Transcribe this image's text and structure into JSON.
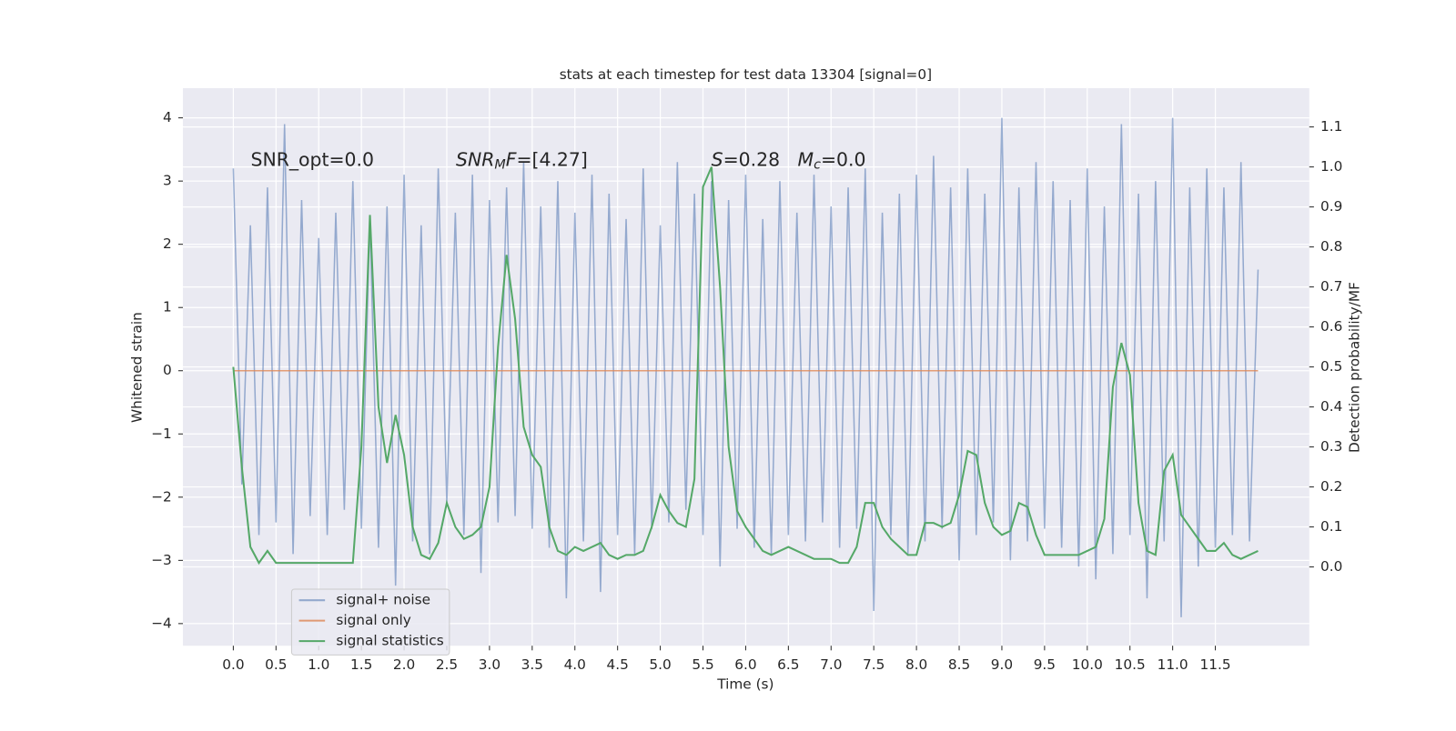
{
  "chart_data": {
    "type": "line",
    "title": "stats at each timestep for test data 13304 [signal=0]",
    "xlabel": "Time (s)",
    "ylabel": "Whitened strain",
    "y2label": "Detection probability/MF",
    "annotations": [
      [
        {
          "text": "SNR_opt=0.0"
        }
      ],
      [
        {
          "text": "SNR",
          "italic": true
        },
        {
          "text": "M",
          "italic": true,
          "sub": true
        },
        {
          "text": "F",
          "italic": true
        },
        {
          "text": "=[4.27]"
        }
      ],
      [
        {
          "text": "S",
          "italic": true
        },
        {
          "text": "=0.28   "
        },
        {
          "text": "M",
          "italic": true
        },
        {
          "text": "c",
          "italic": true,
          "sub": true
        },
        {
          "text": "=0.0"
        }
      ]
    ],
    "x": [
      0,
      0.1,
      0.2,
      0.3,
      0.4,
      0.5,
      0.6,
      0.7,
      0.8,
      0.9,
      1,
      1.1,
      1.2,
      1.3,
      1.4,
      1.5,
      1.6,
      1.7,
      1.8,
      1.9,
      2,
      2.1,
      2.2,
      2.3,
      2.4,
      2.5,
      2.6,
      2.7,
      2.8,
      2.9,
      3,
      3.1,
      3.2,
      3.3,
      3.4,
      3.5,
      3.6,
      3.7,
      3.8,
      3.9,
      4,
      4.1,
      4.2,
      4.3,
      4.4,
      4.5,
      4.6,
      4.7,
      4.8,
      4.9,
      5,
      5.1,
      5.2,
      5.3,
      5.4,
      5.5,
      5.6,
      5.7,
      5.8,
      5.9,
      6,
      6.1,
      6.2,
      6.3,
      6.4,
      6.5,
      6.6,
      6.7,
      6.8,
      6.9,
      7,
      7.1,
      7.2,
      7.3,
      7.4,
      7.5,
      7.6,
      7.7,
      7.8,
      7.9,
      8,
      8.1,
      8.2,
      8.3,
      8.4,
      8.5,
      8.6,
      8.7,
      8.8,
      8.9,
      9,
      9.1,
      9.2,
      9.3,
      9.4,
      9.5,
      9.6,
      9.7,
      9.8,
      9.9,
      10,
      10.1,
      10.2,
      10.3,
      10.4,
      10.5,
      10.6,
      10.7,
      10.8,
      10.9,
      11,
      11.1,
      11.2,
      11.3,
      11.4,
      11.5,
      11.6,
      11.7,
      11.8,
      11.9,
      12
    ],
    "series": [
      {
        "name": "signal+ noise",
        "color": "#4c72b0",
        "values": [
          3.2,
          -1.8,
          2.3,
          -2.6,
          2.9,
          -2.4,
          3.9,
          -2.9,
          2.7,
          -2.3,
          2.1,
          -2.6,
          2.5,
          -2.2,
          3.0,
          -2.5,
          2.4,
          -2.8,
          2.6,
          -3.4,
          3.1,
          -2.7,
          2.3,
          -2.9,
          3.2,
          -2.1,
          2.5,
          -2.6,
          3.1,
          -3.2,
          2.7,
          -2.4,
          2.9,
          -2.3,
          3.3,
          -2.5,
          2.6,
          -2.8,
          3.0,
          -3.6,
          2.5,
          -2.7,
          3.1,
          -3.5,
          2.8,
          -2.6,
          2.4,
          -2.9,
          3.2,
          -2.5,
          2.3,
          -2.4,
          3.3,
          -2.2,
          2.8,
          -2.6,
          3.0,
          -3.1,
          2.7,
          -2.5,
          3.1,
          -2.8,
          2.4,
          -2.9,
          3.0,
          -2.6,
          2.5,
          -2.7,
          3.1,
          -2.4,
          2.6,
          -2.8,
          2.9,
          -2.5,
          3.2,
          -3.8,
          2.5,
          -2.6,
          2.8,
          -2.9,
          3.1,
          -2.7,
          3.4,
          -2.5,
          2.9,
          -3.0,
          3.2,
          -2.6,
          2.8,
          -2.4,
          4.0,
          -3.0,
          2.9,
          -2.7,
          3.3,
          -2.5,
          3.0,
          -2.8,
          2.7,
          -3.1,
          3.2,
          -3.3,
          2.6,
          -2.9,
          3.9,
          -2.6,
          2.8,
          -3.6,
          3.0,
          -2.7,
          4.0,
          -3.9,
          2.9,
          -3.1,
          3.2,
          -2.8,
          2.9,
          -2.6,
          3.3,
          -2.7,
          1.6
        ]
      },
      {
        "name": "signal only",
        "color": "#dd8452",
        "values": [
          0,
          0,
          0,
          0,
          0,
          0,
          0,
          0,
          0,
          0,
          0,
          0,
          0,
          0,
          0,
          0,
          0,
          0,
          0,
          0,
          0,
          0,
          0,
          0,
          0,
          0,
          0,
          0,
          0,
          0,
          0,
          0,
          0,
          0,
          0,
          0,
          0,
          0,
          0,
          0,
          0,
          0,
          0,
          0,
          0,
          0,
          0,
          0,
          0,
          0,
          0,
          0,
          0,
          0,
          0,
          0,
          0,
          0,
          0,
          0,
          0,
          0,
          0,
          0,
          0,
          0,
          0,
          0,
          0,
          0,
          0,
          0,
          0,
          0,
          0,
          0,
          0,
          0,
          0,
          0,
          0,
          0,
          0,
          0,
          0,
          0,
          0,
          0,
          0,
          0,
          0,
          0,
          0,
          0,
          0,
          0,
          0,
          0,
          0,
          0,
          0,
          0,
          0,
          0,
          0,
          0,
          0,
          0,
          0,
          0,
          0,
          0,
          0,
          0,
          0,
          0,
          0,
          0,
          0,
          0,
          0
        ]
      },
      {
        "name": "signal statistics",
        "color": "#55a868",
        "axis": "y2",
        "values": [
          0.5,
          0.25,
          0.05,
          0.01,
          0.04,
          0.01,
          0.01,
          0.01,
          0.01,
          0.01,
          0.01,
          0.01,
          0.01,
          0.01,
          0.01,
          0.3,
          0.88,
          0.4,
          0.26,
          0.38,
          0.28,
          0.1,
          0.03,
          0.02,
          0.06,
          0.16,
          0.1,
          0.07,
          0.08,
          0.1,
          0.2,
          0.55,
          0.78,
          0.62,
          0.35,
          0.28,
          0.25,
          0.1,
          0.04,
          0.03,
          0.05,
          0.04,
          0.05,
          0.06,
          0.03,
          0.02,
          0.03,
          0.03,
          0.04,
          0.1,
          0.18,
          0.14,
          0.11,
          0.1,
          0.22,
          0.95,
          1.0,
          0.7,
          0.3,
          0.14,
          0.1,
          0.07,
          0.04,
          0.03,
          0.04,
          0.05,
          0.04,
          0.03,
          0.02,
          0.02,
          0.02,
          0.01,
          0.01,
          0.05,
          0.16,
          0.16,
          0.1,
          0.07,
          0.05,
          0.03,
          0.03,
          0.11,
          0.11,
          0.1,
          0.11,
          0.18,
          0.29,
          0.28,
          0.16,
          0.1,
          0.08,
          0.09,
          0.16,
          0.15,
          0.08,
          0.03,
          0.03,
          0.03,
          0.03,
          0.03,
          0.04,
          0.05,
          0.12,
          0.45,
          0.56,
          0.48,
          0.16,
          0.04,
          0.03,
          0.24,
          0.28,
          0.13,
          0.1,
          0.07,
          0.04,
          0.04,
          0.06,
          0.03,
          0.02,
          0.03,
          0.04
        ]
      }
    ],
    "xlim": [
      -0.59,
      12.6
    ],
    "ylim": [
      -4.35,
      4.47
    ],
    "y2lim": [
      -0.197,
      1.197
    ],
    "xticks": [
      {
        "value": 0,
        "label": "0.0"
      },
      0.5,
      {
        "value": 1,
        "label": "1.0"
      },
      1.5,
      {
        "value": 2,
        "label": "2.0"
      },
      2.5,
      {
        "value": 3,
        "label": "3.0"
      },
      3.5,
      {
        "value": 4,
        "label": "4.0"
      },
      4.5,
      {
        "value": 5,
        "label": "5.0"
      },
      5.5,
      {
        "value": 6,
        "label": "6.0"
      },
      6.5,
      {
        "value": 7,
        "label": "7.0"
      },
      7.5,
      {
        "value": 8,
        "label": "8.0"
      },
      8.5,
      {
        "value": 9,
        "label": "9.0"
      },
      9.5,
      {
        "value": 10,
        "label": "10.0"
      },
      10.5,
      {
        "value": 11,
        "label": "11.0"
      },
      11.5
    ],
    "yticks": [
      {
        "value": -4,
        "label": "−4"
      },
      {
        "value": -3,
        "label": "−3"
      },
      {
        "value": -2,
        "label": "−2"
      },
      {
        "value": -1,
        "label": "−1"
      },
      0,
      1,
      2,
      3,
      4
    ],
    "y2ticks": [
      {
        "value": 0,
        "label": "0.0"
      },
      0.1,
      0.2,
      0.3,
      0.4,
      0.5,
      0.6,
      0.7,
      0.8,
      0.9,
      {
        "value": 1,
        "label": "1.0"
      },
      1.1
    ],
    "grid": true,
    "legend": "lower left"
  }
}
